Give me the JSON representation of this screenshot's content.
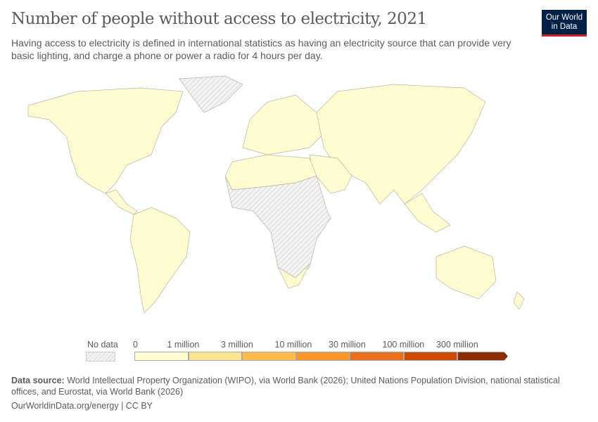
{
  "header": {
    "title": "Number of people without access to electricity, 2021",
    "subtitle": "Having access to electricity is defined in international statistics as having an electricity source that can provide very basic lighting, and charge a phone or power a radio for 4 hours per day.",
    "logo": "Our World in Data"
  },
  "legend": {
    "no_data_label": "No data",
    "bins": [
      {
        "label": "0",
        "color": "#fefcd0"
      },
      {
        "label": "1 million",
        "color": "#fde492"
      },
      {
        "label": "3 million",
        "color": "#fdbb4a"
      },
      {
        "label": "10 million",
        "color": "#f9962b"
      },
      {
        "label": "30 million",
        "color": "#e9711b"
      },
      {
        "label": "100 million",
        "color": "#cc4c02"
      },
      {
        "label": "300 million",
        "color": "#8c2d04"
      }
    ]
  },
  "colors": {
    "land": "#fefcd0",
    "border": "#b5b5a0",
    "no_data": "#e6e6e6"
  },
  "footer": {
    "source_label": "Data source:",
    "source_text": " World Intellectual Property Organization (WIPO), via World Bank (2026); United Nations Population Division, national statistical offices, and Eurostat, via World Bank (2026)",
    "url": "OurWorldinData.org/energy | CC BY"
  }
}
